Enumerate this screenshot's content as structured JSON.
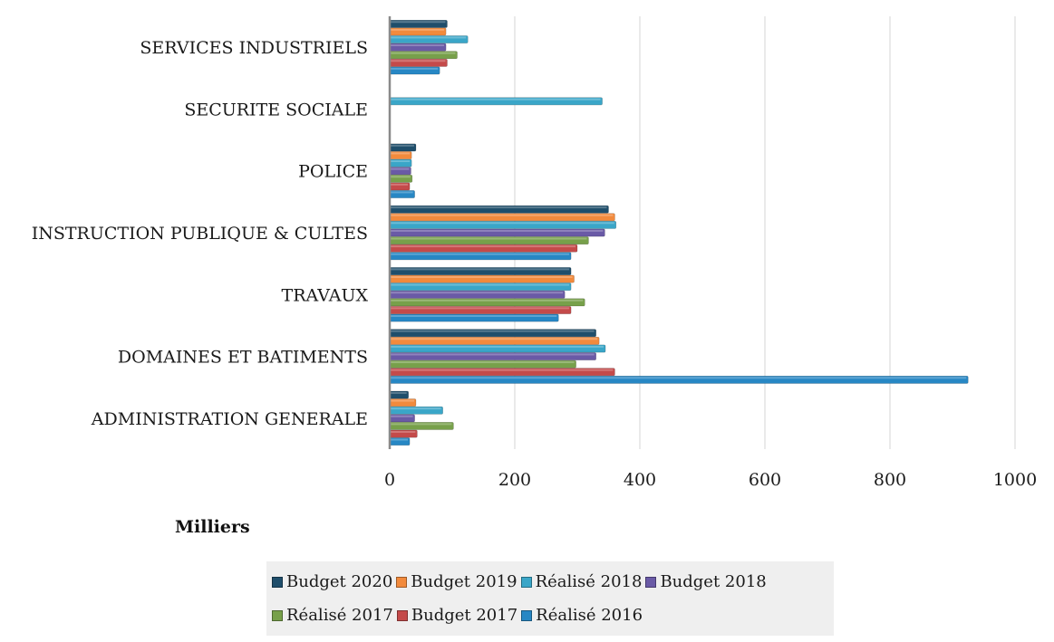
{
  "chart_data": {
    "type": "bar",
    "orientation": "horizontal",
    "categories": [
      "SERVICES INDUSTRIELS",
      "SECURITE SOCIALE",
      "POLICE",
      "INSTRUCTION PUBLIQUE & CULTES",
      "TRAVAUX",
      "DOMAINES ET BATIMENTS",
      "ADMINISTRATION GENERALE"
    ],
    "series": [
      {
        "name": "Budget 2020",
        "color": "#1f4e6b",
        "values": [
          92,
          0,
          42,
          350,
          290,
          330,
          30
        ]
      },
      {
        "name": "Budget 2019",
        "color": "#f28a3c",
        "values": [
          90,
          0,
          35,
          360,
          295,
          335,
          42
        ]
      },
      {
        "name": "Réalisé 2018",
        "color": "#3aa6c8",
        "values": [
          125,
          340,
          35,
          362,
          290,
          345,
          85
        ]
      },
      {
        "name": "Budget 2018",
        "color": "#6a5aa6",
        "values": [
          90,
          0,
          34,
          344,
          280,
          330,
          40
        ]
      },
      {
        "name": "Réalisé 2017",
        "color": "#77a04a",
        "values": [
          108,
          0,
          36,
          318,
          312,
          298,
          102
        ]
      },
      {
        "name": "Budget 2017",
        "color": "#c44a4a",
        "values": [
          92,
          0,
          32,
          300,
          290,
          360,
          44
        ]
      },
      {
        "name": "Réalisé 2016",
        "color": "#2787c4",
        "values": [
          80,
          0,
          40,
          290,
          270,
          925,
          32
        ]
      }
    ],
    "xlim": [
      0,
      1000
    ],
    "xticks": [
      "0",
      "200",
      "400",
      "600",
      "800",
      "1000"
    ],
    "unit_label": "Milliers",
    "grid": true,
    "legend_position": "bottom"
  }
}
